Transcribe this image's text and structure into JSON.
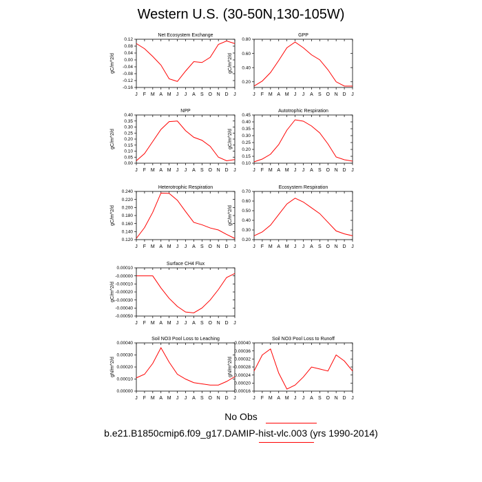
{
  "title": "Western U.S. (30-50N,130-105W)",
  "legend_label": "No Obs",
  "case_label": "b.e21.B1850cmip6.f09_g17.DAMIP-hist-vlc.003 (yrs 1990-2014)",
  "colors": {
    "series": "#ff0000",
    "axis": "#000000"
  },
  "chart_data": [
    {
      "type": "line",
      "title": "Net Ecosystem Exchange",
      "ylabel": "gC/m^2/d",
      "categories": [
        "J",
        "F",
        "M",
        "A",
        "M",
        "J",
        "J",
        "A",
        "S",
        "O",
        "N",
        "D",
        "J"
      ],
      "ylim": [
        -0.16,
        0.12
      ],
      "yticks": [
        0.12,
        0.08,
        0.04,
        0.0,
        -0.04,
        -0.08,
        -0.12,
        -0.16
      ],
      "ytick_labels": [
        "0.12",
        "0.08",
        "0.04",
        "0.00",
        "-0.04",
        "-0.08",
        "-0.12",
        "-0.16"
      ],
      "values": [
        0.095,
        0.065,
        0.02,
        -0.03,
        -0.11,
        -0.125,
        -0.065,
        -0.01,
        -0.015,
        0.015,
        0.09,
        0.11,
        0.095
      ]
    },
    {
      "type": "line",
      "title": "GPP",
      "ylabel": "gC/m^2/d",
      "categories": [
        "J",
        "F",
        "M",
        "A",
        "M",
        "J",
        "J",
        "A",
        "S",
        "O",
        "N",
        "D",
        "J"
      ],
      "ylim": [
        0.12,
        0.8
      ],
      "yticks": [
        0.2,
        0.4,
        0.6,
        0.8
      ],
      "ytick_labels": [
        "0.20",
        "0.40",
        "0.60",
        "0.80"
      ],
      "values": [
        0.14,
        0.21,
        0.33,
        0.5,
        0.68,
        0.76,
        0.68,
        0.58,
        0.51,
        0.37,
        0.2,
        0.14,
        0.14
      ]
    },
    {
      "type": "line",
      "title": "NPP",
      "ylabel": "gC/m^2/d",
      "categories": [
        "J",
        "F",
        "M",
        "A",
        "M",
        "J",
        "J",
        "A",
        "S",
        "O",
        "N",
        "D",
        "J"
      ],
      "ylim": [
        0.0,
        0.4
      ],
      "yticks": [
        0.0,
        0.05,
        0.1,
        0.15,
        0.2,
        0.25,
        0.3,
        0.35,
        0.4
      ],
      "ytick_labels": [
        "0.00",
        "0.05",
        "0.10",
        "0.15",
        "0.20",
        "0.25",
        "0.30",
        "0.35",
        "0.40"
      ],
      "values": [
        0.02,
        0.08,
        0.18,
        0.28,
        0.345,
        0.35,
        0.27,
        0.215,
        0.19,
        0.14,
        0.05,
        0.02,
        0.03
      ]
    },
    {
      "type": "line",
      "title": "Autotrophic Respiration",
      "ylabel": "gC/m^2/d",
      "categories": [
        "J",
        "F",
        "M",
        "A",
        "M",
        "J",
        "J",
        "A",
        "S",
        "O",
        "N",
        "D",
        "J"
      ],
      "ylim": [
        0.1,
        0.45
      ],
      "yticks": [
        0.1,
        0.15,
        0.2,
        0.25,
        0.3,
        0.35,
        0.4,
        0.45
      ],
      "ytick_labels": [
        "0.10",
        "0.15",
        "0.20",
        "0.25",
        "0.30",
        "0.35",
        "0.40",
        "0.45"
      ],
      "values": [
        0.11,
        0.13,
        0.165,
        0.235,
        0.34,
        0.415,
        0.405,
        0.37,
        0.32,
        0.24,
        0.145,
        0.125,
        0.115
      ]
    },
    {
      "type": "line",
      "title": "Heterotrophic Respiration",
      "ylabel": "gC/m^2/d",
      "categories": [
        "J",
        "F",
        "M",
        "A",
        "M",
        "J",
        "J",
        "A",
        "S",
        "O",
        "N",
        "D",
        "J"
      ],
      "ylim": [
        0.12,
        0.24
      ],
      "yticks": [
        0.12,
        0.14,
        0.16,
        0.18,
        0.2,
        0.22,
        0.24
      ],
      "ytick_labels": [
        "0.120",
        "0.140",
        "0.160",
        "0.180",
        "0.200",
        "0.220",
        "0.240"
      ],
      "values": [
        0.123,
        0.15,
        0.188,
        0.236,
        0.235,
        0.218,
        0.19,
        0.163,
        0.157,
        0.149,
        0.144,
        0.133,
        0.123
      ]
    },
    {
      "type": "line",
      "title": "Ecosystem Respiration",
      "ylabel": "gC/m^2/d",
      "categories": [
        "J",
        "F",
        "M",
        "A",
        "M",
        "J",
        "J",
        "A",
        "S",
        "O",
        "N",
        "D",
        "J"
      ],
      "ylim": [
        0.2,
        0.7
      ],
      "yticks": [
        0.2,
        0.3,
        0.4,
        0.5,
        0.6,
        0.7
      ],
      "ytick_labels": [
        "0.20",
        "0.30",
        "0.40",
        "0.50",
        "0.60",
        "0.70"
      ],
      "values": [
        0.24,
        0.28,
        0.35,
        0.46,
        0.57,
        0.63,
        0.59,
        0.53,
        0.47,
        0.38,
        0.29,
        0.26,
        0.24
      ]
    },
    {
      "type": "line",
      "title": "Surface CH4 Flux",
      "ylabel": "gC/m^2/d",
      "categories": [
        "J",
        "F",
        "M",
        "A",
        "M",
        "J",
        "J",
        "A",
        "S",
        "O",
        "N",
        "D",
        "J"
      ],
      "ylim": [
        -0.0005,
        0.0001
      ],
      "yticks": [
        0.0001,
        0.0,
        -0.0001,
        -0.0002,
        -0.0003,
        -0.0004,
        -0.0005
      ],
      "ytick_labels": [
        "0.00010",
        "-0.00000",
        "-0.00010",
        "-0.00020",
        "-0.00030",
        "-0.00040",
        "-0.00050"
      ],
      "values": [
        0.0,
        0.0,
        0.0,
        -0.00015,
        -0.00028,
        -0.00038,
        -0.00045,
        -0.00046,
        -0.0004,
        -0.0003,
        -0.00017,
        -2e-05,
        3e-05
      ]
    },
    {
      "type": "line",
      "title": "Soil NO3 Pool Loss to Leaching",
      "ylabel": "gN/m^2/d",
      "categories": [
        "J",
        "F",
        "M",
        "A",
        "M",
        "J",
        "J",
        "A",
        "S",
        "O",
        "N",
        "D",
        "J"
      ],
      "ylim": [
        0.0,
        0.0004
      ],
      "yticks": [
        0.0,
        0.0001,
        0.0002,
        0.0003,
        0.0004
      ],
      "ytick_labels": [
        "0.00000",
        "0.00010",
        "0.00020",
        "0.00030",
        "0.00040"
      ],
      "values": [
        0.00011,
        0.00014,
        0.00023,
        0.00036,
        0.00024,
        0.00014,
        0.0001,
        7e-05,
        6e-05,
        5e-05,
        5e-05,
        8e-05,
        0.00012
      ]
    },
    {
      "type": "line",
      "title": "Soil NO3 Pool Loss to Runoff",
      "ylabel": "gN/m^2/d",
      "categories": [
        "J",
        "F",
        "M",
        "A",
        "M",
        "J",
        "J",
        "A",
        "S",
        "O",
        "N",
        "D",
        "J"
      ],
      "ylim": [
        0.00016,
        0.0004
      ],
      "yticks": [
        0.00016,
        0.0002,
        0.00024,
        0.00028,
        0.00032,
        0.00036,
        0.0004
      ],
      "ytick_labels": [
        "0.00016",
        "0.00020",
        "0.00024",
        "0.00028",
        "0.00032",
        "0.00036",
        "0.00040"
      ],
      "values": [
        0.00026,
        0.00034,
        0.00037,
        0.00025,
        0.00017,
        0.00019,
        0.00023,
        0.00028,
        0.00027,
        0.00026,
        0.00034,
        0.00031,
        0.00026
      ]
    }
  ]
}
